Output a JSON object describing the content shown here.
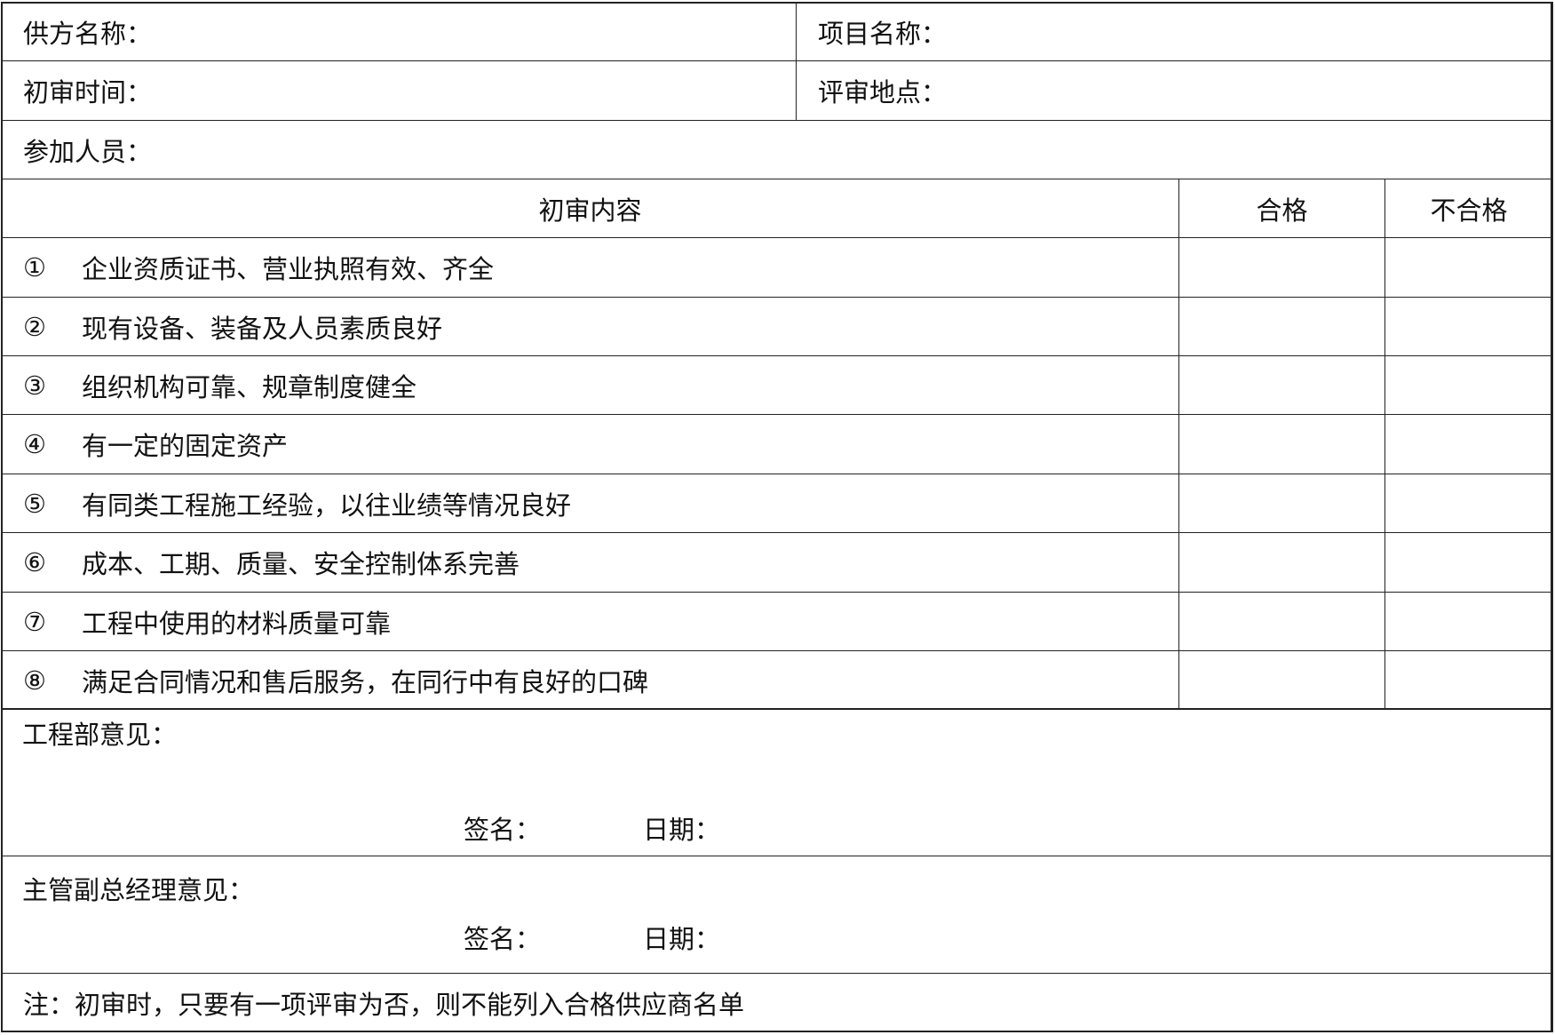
{
  "header": {
    "supplier_label": "供方名称：",
    "project_label": "项目名称：",
    "review_time_label": "初审时间：",
    "review_place_label": "评审地点：",
    "participants_label": "参加人员："
  },
  "table": {
    "columns": [
      "初审内容",
      "合格",
      "不合格"
    ],
    "rows": [
      {
        "num": "①",
        "text": "企业资质证书、营业执照有效、齐全"
      },
      {
        "num": "②",
        "text": "现有设备、装备及人员素质良好"
      },
      {
        "num": "③",
        "text": "组织机构可靠、规章制度健全"
      },
      {
        "num": "④",
        "text": "有一定的固定资产"
      },
      {
        "num": "⑤",
        "text": "有同类工程施工经验，以往业绩等情况良好"
      },
      {
        "num": "⑥",
        "text": "成本、工期、质量、安全控制体系完善"
      },
      {
        "num": "⑦",
        "text": "工程中使用的材料质量可靠"
      },
      {
        "num": "⑧",
        "text": "满足合同情况和售后服务，在同行中有良好的口碑"
      }
    ]
  },
  "engineering": {
    "label": "工程部意见：",
    "sign_label": "签名：",
    "date_label": "日期："
  },
  "manager": {
    "label": "主管副总经理意见：",
    "sign_label": "签名：",
    "date_label": "日期："
  },
  "note": "注：初审时，只要有一项评审为否，则不能列入合格供应商名单"
}
